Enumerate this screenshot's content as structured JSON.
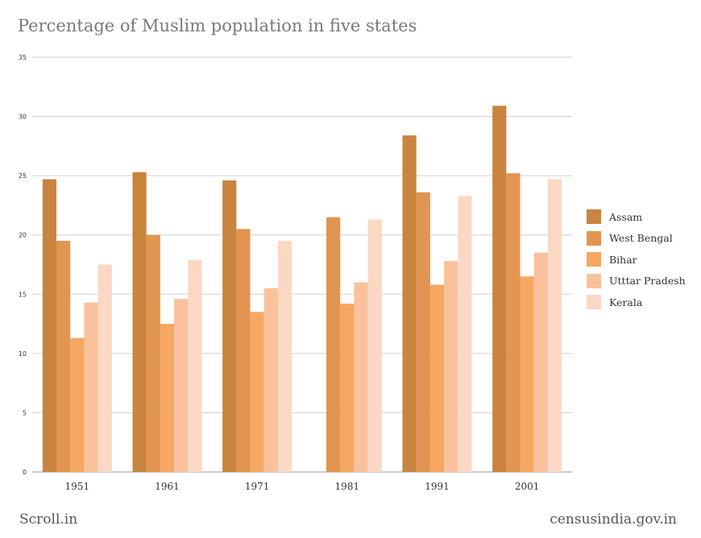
{
  "chart_data": {
    "type": "bar",
    "title": "Percentage of Muslim population in five states",
    "categories": [
      "1951",
      "1961",
      "1971",
      "1981",
      "1991",
      "2001"
    ],
    "series": [
      {
        "name": "Assam",
        "color": "#c9843e",
        "values": [
          24.7,
          25.3,
          24.6,
          null,
          28.4,
          30.9
        ]
      },
      {
        "name": "West Bengal",
        "color": "#e29550",
        "values": [
          19.5,
          20.0,
          20.5,
          21.5,
          23.6,
          25.2
        ]
      },
      {
        "name": "Bihar",
        "color": "#f6a761",
        "values": [
          11.3,
          12.5,
          13.5,
          14.2,
          15.8,
          16.5
        ]
      },
      {
        "name": "Utttar Pradesh",
        "color": "#f9c29c",
        "values": [
          14.3,
          14.6,
          15.5,
          16.0,
          17.8,
          18.5
        ]
      },
      {
        "name": "Kerala",
        "color": "#fbd8c4",
        "values": [
          17.5,
          17.9,
          19.5,
          21.3,
          23.3,
          24.7
        ]
      }
    ],
    "ylim": [
      0,
      35
    ],
    "yticks": [
      0,
      5,
      10,
      15,
      20,
      25,
      30,
      35
    ],
    "grid": true,
    "legend_position": "right"
  },
  "footer": {
    "left": "Scroll.in",
    "right": "censusindia.gov.in"
  }
}
